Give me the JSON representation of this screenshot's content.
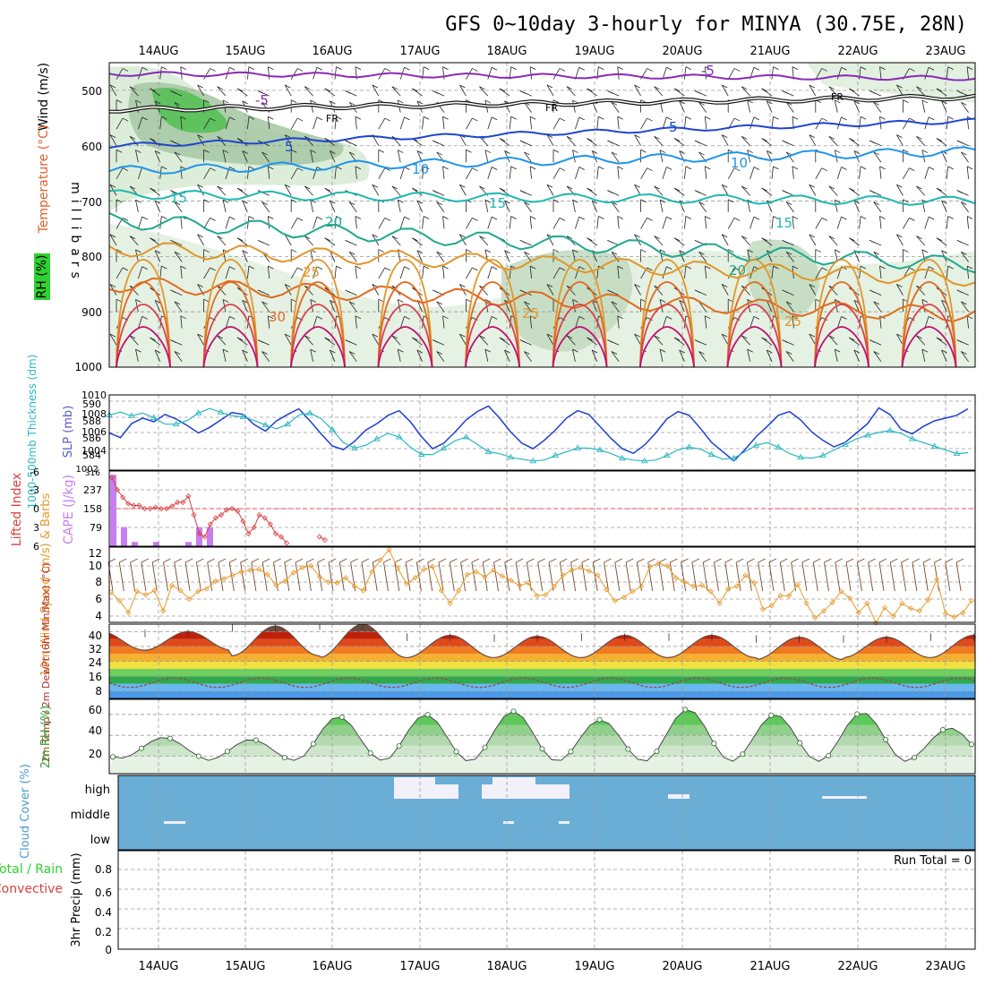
{
  "title": "GFS 0~10day 3-hourly for MINYA (30.75E, 28N)",
  "colors": {
    "frame": "#000000",
    "grid": "#9a9a9a",
    "rh_fill": "#6fcf6f",
    "cloud_bg": "#6aaed6",
    "cloud_block": "#f2f0f8",
    "wind_line": "#e8992a",
    "wind_barb": "#7a4a2a",
    "lifted": "#d94040",
    "cape": "#c77ef0",
    "slp": "#1c3fcf",
    "thick": "#2ab7c0",
    "dewpt": "#9a4a4a"
  },
  "chart_data": [
    {
      "panel": "upper_air",
      "type": "contour",
      "ylabel_chars": "millibars",
      "side_labels": [
        "Wind (m/s)",
        "Temperature (°C)",
        "RH (%)"
      ],
      "yticks": [
        500,
        600,
        700,
        800,
        900,
        1000
      ],
      "ylim": [
        450,
        1000
      ],
      "date_labels": [
        "14AUG",
        "15AUG",
        "16AUG",
        "17AUG",
        "18AUG",
        "19AUG",
        "20AUG",
        "21AUG",
        "22AUG",
        "23AUG"
      ],
      "temperature_contours": [
        {
          "label": "-5",
          "color": "#8a2ab5",
          "p_start": 470,
          "p_end": 478
        },
        {
          "label": "FR",
          "color": "#111111",
          "p_start": 535,
          "p_end": 512
        },
        {
          "label": "5",
          "color": "#1f45cf",
          "p_start": 600,
          "p_end": 555
        },
        {
          "label": "10",
          "color": "#2095e8",
          "p_start": 645,
          "p_end": 610
        },
        {
          "label": "15",
          "color": "#1fb8b0",
          "p_start": 688,
          "p_end": 700
        },
        {
          "label": "20",
          "color": "#20a890",
          "p_start": 735,
          "p_end": 815
        },
        {
          "label": "25",
          "color": "#e0962a",
          "p_start": 785,
          "p_end": 840
        },
        {
          "label": "30",
          "color": "#e06a20",
          "p_start": 850,
          "p_end": 905
        }
      ],
      "contour_labels": [
        "-5",
        "-5",
        "FR",
        "FR",
        "FR",
        "5",
        "5",
        "10",
        "10",
        "15",
        "15",
        "15",
        "20",
        "20",
        "25",
        "25",
        "25",
        "30"
      ]
    },
    {
      "panel": "slp_thickness",
      "type": "line",
      "left_ylabel": "1000-500mb Thickness (dm)",
      "right_ylabel": "SLP (mb)",
      "left_ticks": [
        584,
        586,
        588,
        590
      ],
      "right_ticks": [
        1004,
        1006,
        1008,
        1010
      ],
      "corner_tick": "1002",
      "series": [
        {
          "name": "SLP (mb)",
          "values": [
            1006.0,
            1005.5,
            1007.0,
            1007.6,
            1007.2,
            1008.0,
            1007.5,
            1006.8,
            1006.0,
            1006.6,
            1007.4,
            1008.2,
            1008.0,
            1006.9,
            1006.2,
            1007.3,
            1008.0,
            1008.6,
            1007.3,
            1005.9,
            1004.6,
            1004.2,
            1005.1,
            1006.3,
            1007.0,
            1007.9,
            1008.4,
            1007.2,
            1005.6,
            1004.3,
            1004.9,
            1006.1,
            1007.4,
            1008.3,
            1008.9,
            1007.6,
            1006.1,
            1004.9,
            1004.3,
            1005.2,
            1006.3,
            1007.6,
            1008.4,
            1008.0,
            1006.7,
            1005.4,
            1004.3,
            1003.8,
            1004.7,
            1006.0,
            1007.5,
            1008.3,
            1007.9,
            1006.5,
            1005.0,
            1004.0,
            1003.0,
            1004.2,
            1005.6,
            1006.7,
            1007.9,
            1008.3,
            1007.4,
            1006.1,
            1005.2,
            1004.5,
            1005.0,
            1006.0,
            1007.0,
            1008.7,
            1008.0,
            1006.4,
            1005.9,
            1006.7,
            1007.3,
            1007.6,
            1007.9,
            1008.6
          ]
        },
        {
          "name": "1000-500mb Thickness (dm)",
          "values": [
            588.6,
            588.9,
            588.5,
            588.8,
            588.3,
            587.6,
            587.6,
            588.0,
            588.8,
            589.3,
            588.9,
            588.5,
            588.4,
            588.0,
            587.5,
            587.1,
            587.6,
            588.6,
            588.8,
            588.2,
            587.0,
            585.6,
            585.0,
            585.3,
            586.0,
            586.6,
            586.2,
            585.1,
            584.3,
            584.3,
            585.0,
            585.8,
            586.2,
            585.4,
            584.6,
            584.4,
            584.0,
            583.8,
            583.6,
            583.7,
            584.2,
            584.6,
            585.0,
            585.0,
            584.8,
            584.4,
            583.9,
            583.7,
            583.6,
            583.7,
            584.2,
            584.8,
            585.1,
            584.9,
            584.3,
            583.8,
            583.9,
            584.6,
            585.3,
            585.6,
            585.1,
            584.4,
            584.0,
            583.9,
            584.2,
            584.8,
            585.4,
            586.0,
            586.4,
            586.7,
            586.9,
            586.6,
            586.0,
            585.6,
            585.2,
            584.8,
            584.4,
            584.5
          ]
        }
      ]
    },
    {
      "panel": "cape_lifted",
      "type": "bar+line",
      "left_ylabel": "Lifted Index",
      "right_ylabel": "CAPE (J/kg)",
      "li_ticks": [
        "-6",
        "-3",
        "0",
        "3",
        "6"
      ],
      "cape_ticks": [
        "316",
        "237",
        "158",
        "79"
      ],
      "cape_values": [
        300,
        80,
        18,
        0,
        18,
        0,
        0,
        18,
        80,
        80
      ],
      "lifted_index": [
        -5.0,
        -3.0,
        -1.8,
        -0.8,
        -0.5,
        -0.5,
        0.0,
        0.0,
        -0.2,
        0.0,
        0.0,
        -0.4,
        -1.0,
        -1.0,
        -2.0,
        1.0,
        4.0,
        4.5,
        2.5,
        1.5,
        1.0,
        0.2,
        0.0,
        0.4,
        2.0,
        4.0,
        3.0,
        1.0,
        1.5,
        2.5,
        4.0,
        4.5,
        5.5,
        null,
        null,
        null,
        null,
        null,
        4.5,
        5.0,
        null,
        null,
        null,
        null,
        null,
        null,
        null,
        null,
        null,
        null,
        null
      ]
    },
    {
      "panel": "wind10m",
      "type": "line",
      "ylabel": "10m Wind Speed (m/s) & Barbs",
      "yticks": [
        4,
        6,
        8,
        10,
        12
      ],
      "values": [
        6.8,
        5.8,
        4.4,
        6.9,
        6.5,
        7.0,
        4.6,
        7.6,
        7.0,
        6.0,
        6.9,
        7.2,
        8.1,
        8.4,
        8.8,
        9.2,
        9.4,
        9.5,
        8.9,
        7.6,
        8.1,
        9.1,
        9.7,
        9.9,
        8.6,
        8.0,
        7.9,
        8.5,
        7.5,
        7.0,
        9.2,
        10.6,
        11.8,
        9.6,
        7.8,
        8.5,
        9.5,
        9.8,
        7.0,
        5.5,
        7.0,
        8.9,
        9.2,
        8.6,
        9.4,
        8.7,
        8.2,
        7.6,
        7.9,
        6.4,
        6.5,
        7.5,
        8.8,
        9.4,
        9.7,
        9.3,
        8.8,
        7.1,
        5.8,
        6.2,
        6.9,
        7.5,
        9.8,
        10.2,
        9.9,
        8.5,
        8.0,
        7.5,
        7.6,
        6.9,
        5.5,
        7.2,
        7.5,
        8.8,
        7.9,
        4.8,
        5.2,
        6.4,
        6.4,
        7.7,
        5.5,
        3.8,
        4.6,
        5.6,
        6.9,
        6.1,
        4.4,
        5.5,
        3.2,
        5.0,
        4.0,
        5.5,
        4.9,
        4.6,
        5.9,
        8.3,
        4.3,
        3.9,
        4.4,
        5.8
      ]
    },
    {
      "panel": "temp2m",
      "type": "area",
      "ylabel": "2m Temp / 2m DewPt (6hr Min/Max) (°C)",
      "yticks": [
        8,
        16,
        24,
        32,
        40
      ],
      "daily_max": [
        40.0,
        43.0,
        44.0,
        38.0,
        37.5,
        38.0,
        38.0,
        37.0,
        37.0,
        38.0
      ],
      "daily_min": [
        30.0,
        27.0,
        26.0,
        26.0,
        26.0,
        26.0,
        26.0,
        25.0,
        26.0,
        26.0
      ],
      "dewpoint_range": [
        10,
        15
      ]
    },
    {
      "panel": "rh2m",
      "type": "area",
      "ylabel": "2m RH (%)",
      "yticks": [
        20,
        40,
        60
      ],
      "daily_max": [
        38,
        36,
        58,
        60,
        63,
        55,
        65,
        60,
        62,
        47
      ],
      "daily_min": [
        18,
        16,
        16,
        15,
        15,
        15,
        15,
        15,
        15,
        16
      ]
    },
    {
      "panel": "cloud",
      "type": "heatmap",
      "ylabel": "Cloud Cover (%)",
      "levels": [
        "high",
        "middle",
        "low"
      ]
    },
    {
      "panel": "precip",
      "type": "bar",
      "ylabel": "3hr Precip (mm)",
      "side_labels": [
        "Total / Rain",
        "Convective"
      ],
      "yticks": [
        "0",
        "0.2",
        "0.4",
        "0.6",
        "0.8"
      ],
      "values": [],
      "annotation": "Run Total = 0"
    }
  ]
}
